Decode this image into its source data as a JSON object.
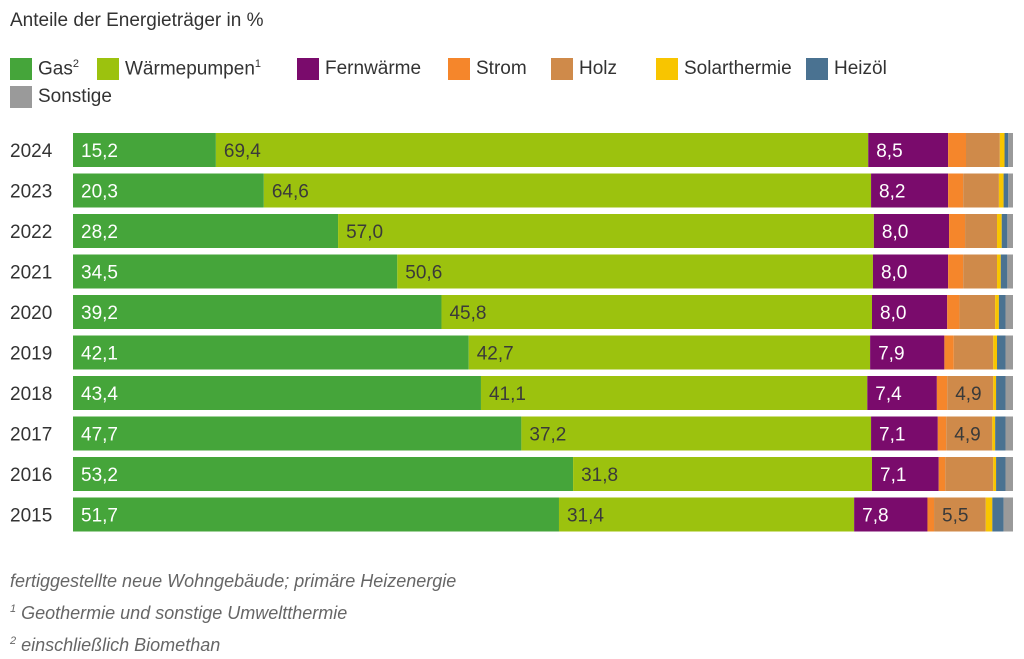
{
  "title": "Anteile der Energieträger in %",
  "legend": [
    {
      "label": "Gas",
      "sup": "2",
      "color": "#45a53a"
    },
    {
      "label": "Wärmepumpen",
      "sup": "1",
      "color": "#9cc20e"
    },
    {
      "label": "Fernwärme",
      "sup": "",
      "color": "#7a0b6c"
    },
    {
      "label": "Strom",
      "sup": "",
      "color": "#f5862b"
    },
    {
      "label": "Holz",
      "sup": "",
      "color": "#cf8a4a"
    },
    {
      "label": "Solarthermie",
      "sup": "",
      "color": "#f8c500"
    },
    {
      "label": "Heizöl",
      "sup": "",
      "color": "#4a7291"
    },
    {
      "label": "Sonstige",
      "sup": "",
      "color": "#9a9a9a"
    }
  ],
  "notes": {
    "line1": "fertiggestellte neue Wohngebäude; primäre Heizenergie",
    "line2_sup": "1",
    "line2": " Geothermie und sonstige Umweltthermie",
    "line3_sup": "2",
    "line3": " einschließlich Biomethan"
  },
  "chart_data": {
    "type": "bar",
    "orientation": "horizontal",
    "stacked": true,
    "xlim": [
      0,
      100
    ],
    "categories": [
      "2024",
      "2023",
      "2022",
      "2021",
      "2020",
      "2019",
      "2018",
      "2017",
      "2016",
      "2015"
    ],
    "series": [
      {
        "name": "Gas",
        "color": "#45a53a",
        "values": [
          15.2,
          20.3,
          28.2,
          34.5,
          39.2,
          42.1,
          43.4,
          47.7,
          53.2,
          51.7
        ],
        "labels": [
          "15,2",
          "20,3",
          "28,2",
          "34,5",
          "39,2",
          "42,1",
          "43,4",
          "47,7",
          "53,2",
          "51,7"
        ]
      },
      {
        "name": "Wärmepumpen",
        "color": "#9cc20e",
        "values": [
          69.4,
          64.6,
          57.0,
          50.6,
          45.8,
          42.7,
          41.1,
          37.2,
          31.8,
          31.4
        ],
        "labels": [
          "69,4",
          "64,6",
          "57,0",
          "50,6",
          "45,8",
          "42,7",
          "41,1",
          "37,2",
          "31,8",
          "31,4"
        ]
      },
      {
        "name": "Fernwärme",
        "color": "#7a0b6c",
        "values": [
          8.5,
          8.2,
          8.0,
          8.0,
          8.0,
          7.9,
          7.4,
          7.1,
          7.1,
          7.8
        ],
        "labels": [
          "8,5",
          "8,2",
          "8,0",
          "8,0",
          "8,0",
          "7,9",
          "7,4",
          "7,1",
          "7,1",
          "7,8"
        ]
      },
      {
        "name": "Strom",
        "color": "#f5862b",
        "values": [
          1.9,
          1.6,
          1.7,
          1.6,
          1.3,
          1.0,
          1.1,
          0.9,
          0.7,
          0.7
        ],
        "labels": [
          "",
          "",
          "",
          "",
          "",
          "",
          "",
          "",
          "",
          ""
        ]
      },
      {
        "name": "Holz",
        "color": "#cf8a4a",
        "values": [
          3.6,
          3.8,
          3.4,
          3.6,
          3.8,
          4.2,
          4.9,
          4.9,
          5.1,
          5.5
        ],
        "labels": [
          "",
          "",
          "",
          "",
          "",
          "",
          "4,9",
          "4,9",
          "",
          "5,5"
        ]
      },
      {
        "name": "Solarthermie",
        "color": "#f8c500",
        "values": [
          0.5,
          0.5,
          0.5,
          0.4,
          0.4,
          0.4,
          0.3,
          0.3,
          0.3,
          0.7
        ],
        "labels": [
          "",
          "",
          "",
          "",
          "",
          "",
          "",
          "",
          "",
          ""
        ]
      },
      {
        "name": "Heizöl",
        "color": "#4a7291",
        "values": [
          0.4,
          0.5,
          0.6,
          0.7,
          0.7,
          0.9,
          1.0,
          1.1,
          1.0,
          1.2
        ],
        "labels": [
          "",
          "",
          "",
          "",
          "",
          "",
          "",
          "",
          "",
          ""
        ]
      },
      {
        "name": "Sonstige",
        "color": "#9a9a9a",
        "values": [
          0.5,
          0.5,
          0.6,
          0.6,
          0.8,
          0.8,
          0.8,
          0.8,
          0.8,
          1.0
        ],
        "labels": [
          "",
          "",
          "",
          "",
          "",
          "",
          "",
          "",
          "",
          ""
        ]
      }
    ]
  }
}
